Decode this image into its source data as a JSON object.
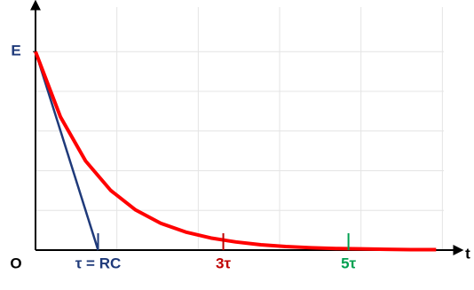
{
  "chart_data": {
    "type": "line",
    "x": [
      0,
      0.4,
      0.8,
      1.2,
      1.6,
      2.0,
      2.4,
      2.8,
      3.2,
      3.6,
      4.0,
      4.4,
      4.8,
      5.2,
      5.6,
      6.0,
      6.4
    ],
    "series": [
      {
        "color": "#ff0000",
        "values": [
          1,
          0.67,
          0.449,
          0.301,
          0.202,
          0.135,
          0.091,
          0.061,
          0.041,
          0.027,
          0.018,
          0.012,
          0.008,
          0.006,
          0.004,
          0.002,
          0.002
        ]
      }
    ],
    "tangent": {
      "color": "#1f3a7a",
      "x": [
        0,
        1
      ],
      "values": [
        1,
        0
      ]
    },
    "xlim": [
      0,
      6.75
    ],
    "ylim": [
      0,
      1.26
    ],
    "xticks": [
      {
        "value": 0,
        "label": "O"
      },
      {
        "value": 1,
        "label": "τ = RC"
      },
      {
        "value": 3,
        "label": "3τ"
      },
      {
        "value": 5,
        "label": "5τ"
      }
    ],
    "xtick_colors": [
      "#000000",
      "#1f3a7a",
      "#c00000",
      "#00a050"
    ],
    "yticks": [
      {
        "value": 1,
        "label": "E"
      }
    ],
    "ytick_color": "#1f3a7a",
    "xlabel": "t",
    "xgrid": [
      1.3,
      2.6,
      3.9,
      5.2,
      6.5
    ],
    "ygrid": [
      0.2,
      0.4,
      0.6,
      0.8,
      1
    ],
    "grid": true
  }
}
